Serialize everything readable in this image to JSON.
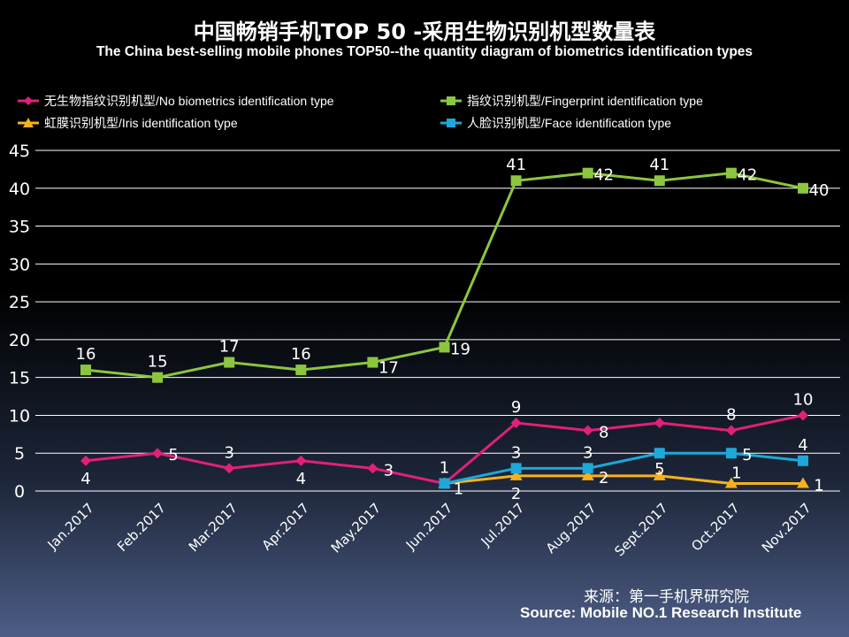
{
  "chart_data": {
    "type": "line",
    "title": "中国畅销手机TOP 50 -采用生物识别机型数量表",
    "subtitle": "The China best-selling mobile phones TOP50--the quantity diagram of biometrics identification types",
    "categories": [
      "Jan.2017",
      "Feb.2017",
      "Mar.2017",
      "Apr.2017",
      "May.2017",
      "Jun.2017",
      "Jul.2017",
      "Aug.2017",
      "Sept.2017",
      "Oct.2017",
      "Nov.2017"
    ],
    "ylim": [
      0,
      45
    ],
    "yticks": [
      "0",
      "5",
      "10",
      "15",
      "20",
      "25",
      "30",
      "35",
      "40",
      "45"
    ],
    "grid": true,
    "legend_position": "top",
    "series": [
      {
        "name": "无生物指纹识别机型/No biometrics identification type",
        "color": "#e0207a",
        "marker": "diamond",
        "values": [
          4,
          5,
          3,
          4,
          3,
          1,
          9,
          8,
          9,
          8,
          10
        ]
      },
      {
        "name": "指纹识别机型/Fingerprint identification type",
        "color": "#8cc63f",
        "marker": "square",
        "values": [
          16,
          15,
          17,
          16,
          17,
          19,
          41,
          42,
          41,
          42,
          40
        ]
      },
      {
        "name": "虹膜识别机型/Iris identification type",
        "color": "#f5b120",
        "marker": "triangle",
        "values": [
          null,
          null,
          null,
          null,
          null,
          1,
          2,
          2,
          2,
          1,
          1
        ]
      },
      {
        "name": "人脸识别机型/Face identification type",
        "color": "#1ea8d8",
        "marker": "square",
        "values": [
          null,
          null,
          null,
          null,
          null,
          1,
          3,
          3,
          5,
          5,
          4
        ]
      }
    ]
  },
  "source": {
    "cn": "来源：第一手机界研究院",
    "en": "Source: Mobile NO.1 Research Institute"
  }
}
